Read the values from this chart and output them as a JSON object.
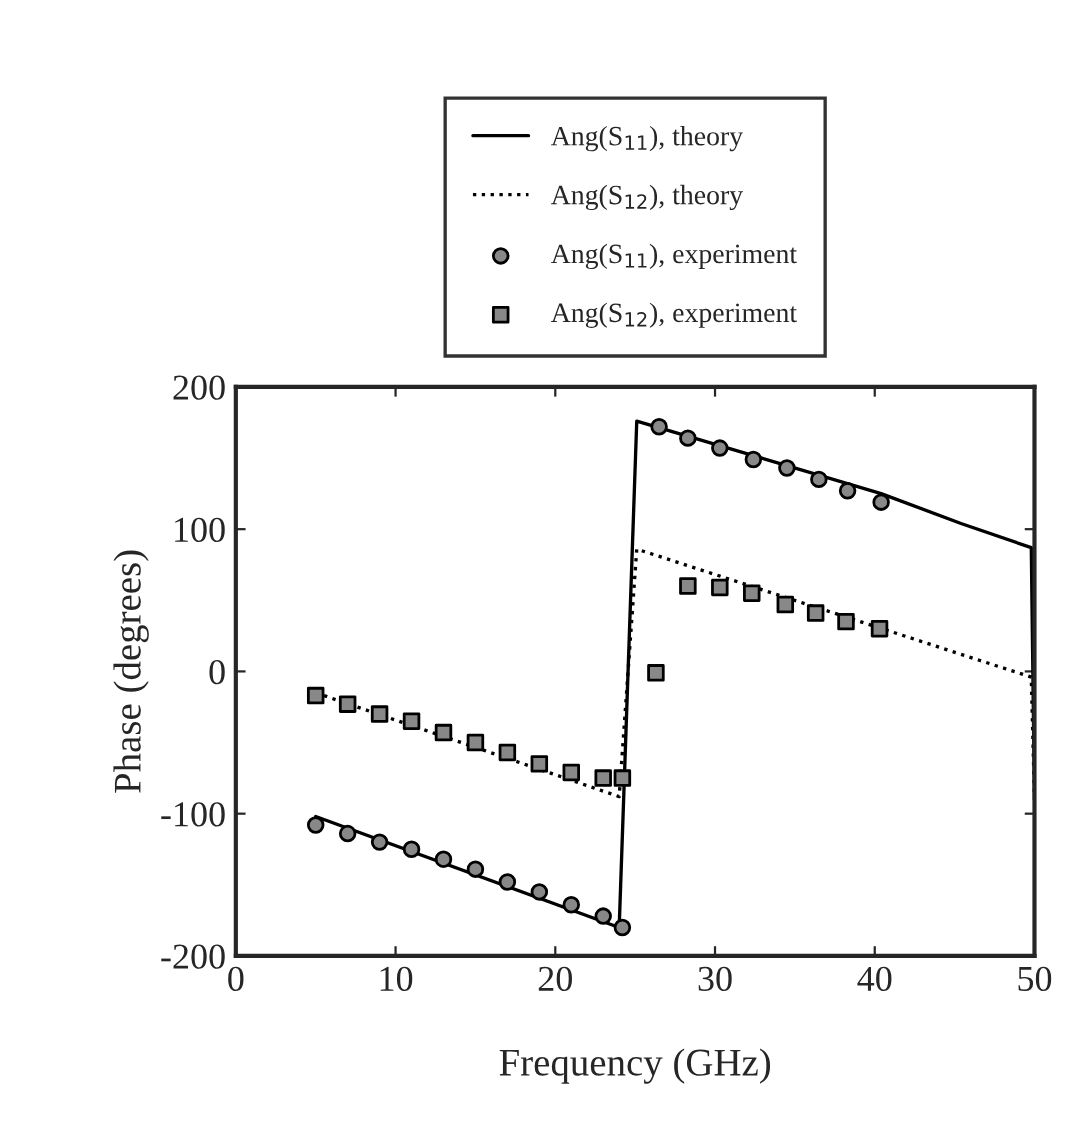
{
  "chart_data": {
    "type": "line",
    "xlabel": "Frequency (GHz)",
    "ylabel": "Phase (degrees)",
    "xlim": [
      0,
      50
    ],
    "xticks": [
      0,
      10,
      20,
      30,
      40,
      50
    ],
    "ylim": [
      -200,
      200
    ],
    "yticks": [
      -200,
      -100,
      0,
      100,
      200
    ],
    "grid": false,
    "legend": "top",
    "series": [
      {
        "name": "Ang(S$_{11}$), theory",
        "line_style": "solid",
        "marker": "none",
        "color": "#000000",
        "x": [
          5,
          24,
          25.1,
          40.4,
          45.4,
          49.8,
          50
        ],
        "values": [
          -102,
          -180,
          176,
          125,
          104,
          87,
          -90
        ]
      },
      {
        "name": "Ang(S$_{12}$), theory",
        "type": "line",
        "line_style": "dotted",
        "marker": "none",
        "color": "#000000",
        "x": [
          5,
          24,
          25.1,
          49.8,
          50
        ],
        "values": [
          -15,
          -88,
          86,
          -4,
          -90
        ]
      },
      {
        "name": "Ang(S$_{11}$), experiment",
        "type": "scatter",
        "marker": "circle",
        "color": "#000000",
        "x": [
          5,
          7,
          9,
          11,
          13,
          15,
          17,
          19,
          21,
          23,
          24.2,
          26.5,
          28.3,
          30.3,
          32.4,
          34.5,
          36.5,
          38.3,
          40.4
        ],
        "values": [
          -108,
          -114,
          -120,
          -125,
          -132,
          -139,
          -148,
          -155,
          -164,
          -172,
          -180,
          172,
          164,
          157,
          149,
          143,
          135,
          127,
          119
        ]
      },
      {
        "name": "Ang(S$_{12}$), experiment",
        "type": "scatter",
        "marker": "square",
        "color": "#000000",
        "x": [
          5,
          7,
          9,
          11,
          13,
          15,
          17,
          19,
          21,
          23,
          24.2,
          26.3,
          28.3,
          30.3,
          32.3,
          34.4,
          36.3,
          38.2,
          40.3
        ],
        "values": [
          -17,
          -23,
          -30,
          -35,
          -43,
          -50,
          -57,
          -65,
          -71,
          -75,
          -75,
          -1,
          60,
          59,
          55,
          47,
          41,
          35,
          30
        ]
      }
    ]
  }
}
